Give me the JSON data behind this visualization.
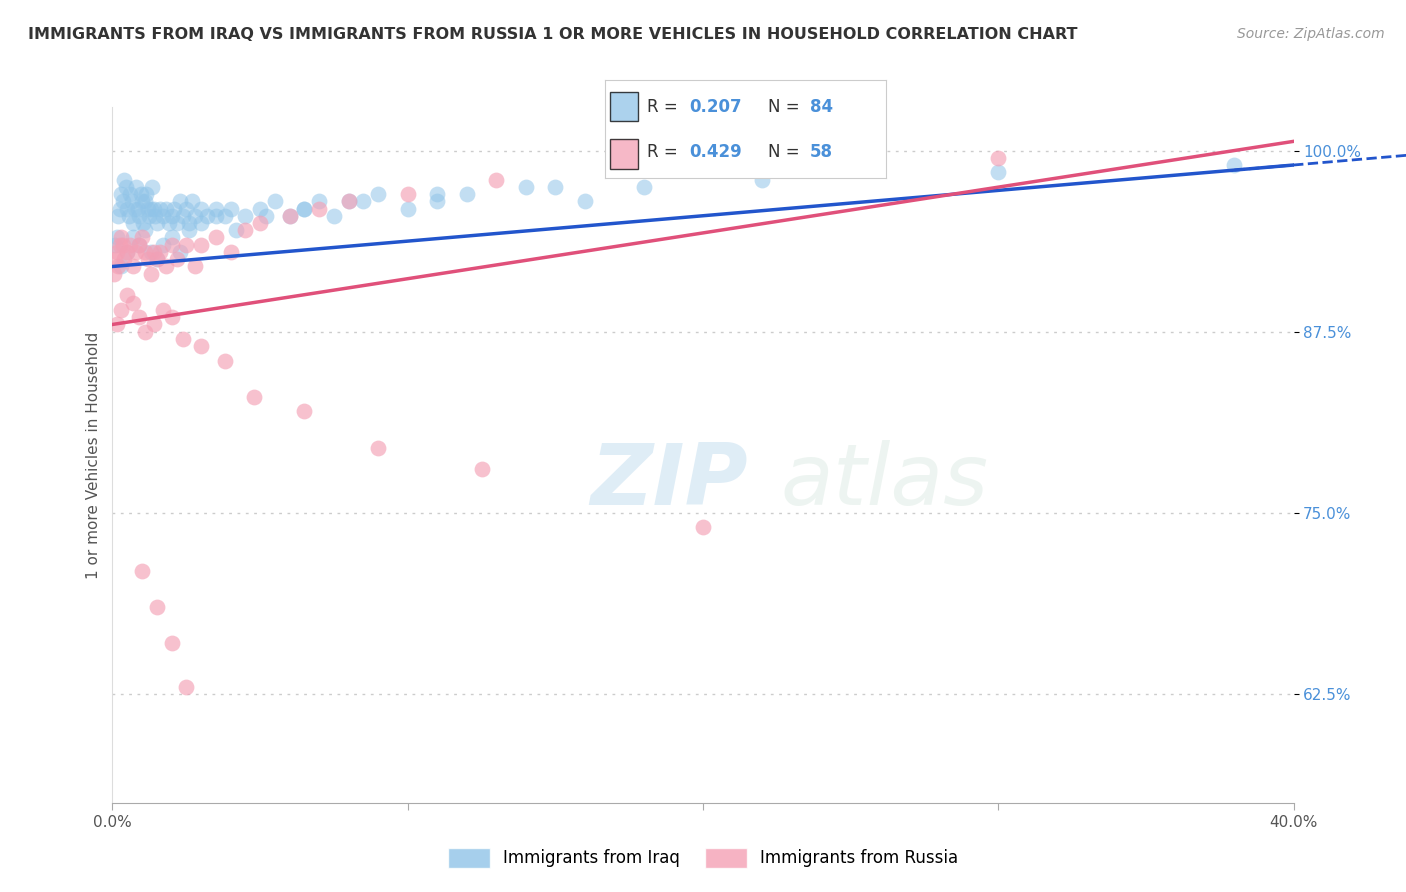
{
  "title": "IMMIGRANTS FROM IRAQ VS IMMIGRANTS FROM RUSSIA 1 OR MORE VEHICLES IN HOUSEHOLD CORRELATION CHART",
  "source": "Source: ZipAtlas.com",
  "ylabel": "1 or more Vehicles in Household",
  "xlim": [
    0.0,
    40.0
  ],
  "ylim": [
    55.0,
    103.0
  ],
  "iraq_color": "#90c4e8",
  "russia_color": "#f4a0b5",
  "iraq_line_color": "#2255cc",
  "russia_line_color": "#e0507a",
  "iraq_R": 0.207,
  "iraq_N": 84,
  "russia_R": 0.429,
  "russia_N": 58,
  "legend_label_iraq": "Immigrants from Iraq",
  "legend_label_russia": "Immigrants from Russia",
  "yticks": [
    62.5,
    75.0,
    87.5,
    100.0
  ],
  "ytick_labels": [
    "62.5%",
    "75.0%",
    "87.5%",
    "100.0%"
  ],
  "xtick_labels": [
    "0.0%",
    "",
    "",
    "",
    "40.0%"
  ],
  "watermark_zip": "ZIP",
  "watermark_atlas": "atlas",
  "iraq_scatter_x": [
    0.1,
    0.15,
    0.2,
    0.25,
    0.3,
    0.35,
    0.4,
    0.45,
    0.5,
    0.55,
    0.6,
    0.65,
    0.7,
    0.75,
    0.8,
    0.85,
    0.9,
    0.95,
    1.0,
    1.05,
    1.1,
    1.15,
    1.2,
    1.25,
    1.3,
    1.35,
    1.4,
    1.45,
    1.5,
    1.6,
    1.7,
    1.8,
    1.9,
    2.0,
    2.1,
    2.2,
    2.3,
    2.4,
    2.5,
    2.6,
    2.7,
    2.8,
    3.0,
    3.2,
    3.5,
    3.8,
    4.0,
    4.5,
    5.0,
    5.5,
    6.0,
    6.5,
    7.0,
    7.5,
    8.0,
    9.0,
    10.0,
    11.0,
    12.0,
    14.0,
    16.0,
    18.0,
    0.3,
    0.5,
    0.7,
    0.9,
    1.1,
    1.3,
    1.5,
    1.7,
    2.0,
    2.3,
    2.6,
    3.0,
    3.5,
    4.2,
    5.2,
    6.5,
    8.5,
    11.0,
    15.0,
    22.0,
    30.0,
    38.0
  ],
  "iraq_scatter_y": [
    93.5,
    94.0,
    95.5,
    96.0,
    97.0,
    96.5,
    98.0,
    97.5,
    96.0,
    95.5,
    97.0,
    96.5,
    95.0,
    96.0,
    97.5,
    96.0,
    95.5,
    97.0,
    96.5,
    95.0,
    96.5,
    97.0,
    96.0,
    95.5,
    96.0,
    97.5,
    96.0,
    95.5,
    95.0,
    96.0,
    95.5,
    96.0,
    95.0,
    95.5,
    96.0,
    95.0,
    96.5,
    95.5,
    96.0,
    95.0,
    96.5,
    95.5,
    96.0,
    95.5,
    96.0,
    95.5,
    96.0,
    95.5,
    96.0,
    96.5,
    95.5,
    96.0,
    96.5,
    95.5,
    96.5,
    97.0,
    96.0,
    96.5,
    97.0,
    97.5,
    96.5,
    97.5,
    92.0,
    93.0,
    94.0,
    93.5,
    94.5,
    93.0,
    92.5,
    93.5,
    94.0,
    93.0,
    94.5,
    95.0,
    95.5,
    94.5,
    95.5,
    96.0,
    96.5,
    97.0,
    97.5,
    98.0,
    98.5,
    99.0
  ],
  "russia_scatter_x": [
    0.05,
    0.1,
    0.15,
    0.2,
    0.25,
    0.3,
    0.35,
    0.4,
    0.5,
    0.6,
    0.7,
    0.8,
    0.9,
    1.0,
    1.1,
    1.2,
    1.3,
    1.4,
    1.5,
    1.6,
    1.8,
    2.0,
    2.2,
    2.5,
    2.8,
    3.0,
    3.5,
    4.0,
    4.5,
    5.0,
    6.0,
    7.0,
    8.0,
    10.0,
    13.0,
    18.0,
    30.0,
    0.15,
    0.3,
    0.5,
    0.7,
    0.9,
    1.1,
    1.4,
    1.7,
    2.0,
    2.4,
    3.0,
    3.8,
    4.8,
    6.5,
    9.0,
    12.5,
    20.0,
    1.0,
    1.5,
    2.0,
    2.5
  ],
  "russia_scatter_y": [
    91.5,
    92.5,
    93.0,
    92.0,
    93.5,
    94.0,
    93.5,
    92.5,
    93.0,
    93.5,
    92.0,
    93.0,
    93.5,
    94.0,
    93.0,
    92.5,
    91.5,
    93.0,
    92.5,
    93.0,
    92.0,
    93.5,
    92.5,
    93.5,
    92.0,
    93.5,
    94.0,
    93.0,
    94.5,
    95.0,
    95.5,
    96.0,
    96.5,
    97.0,
    98.0,
    99.0,
    99.5,
    88.0,
    89.0,
    90.0,
    89.5,
    88.5,
    87.5,
    88.0,
    89.0,
    88.5,
    87.0,
    86.5,
    85.5,
    83.0,
    82.0,
    79.5,
    78.0,
    74.0,
    71.0,
    68.5,
    66.0,
    63.0
  ]
}
